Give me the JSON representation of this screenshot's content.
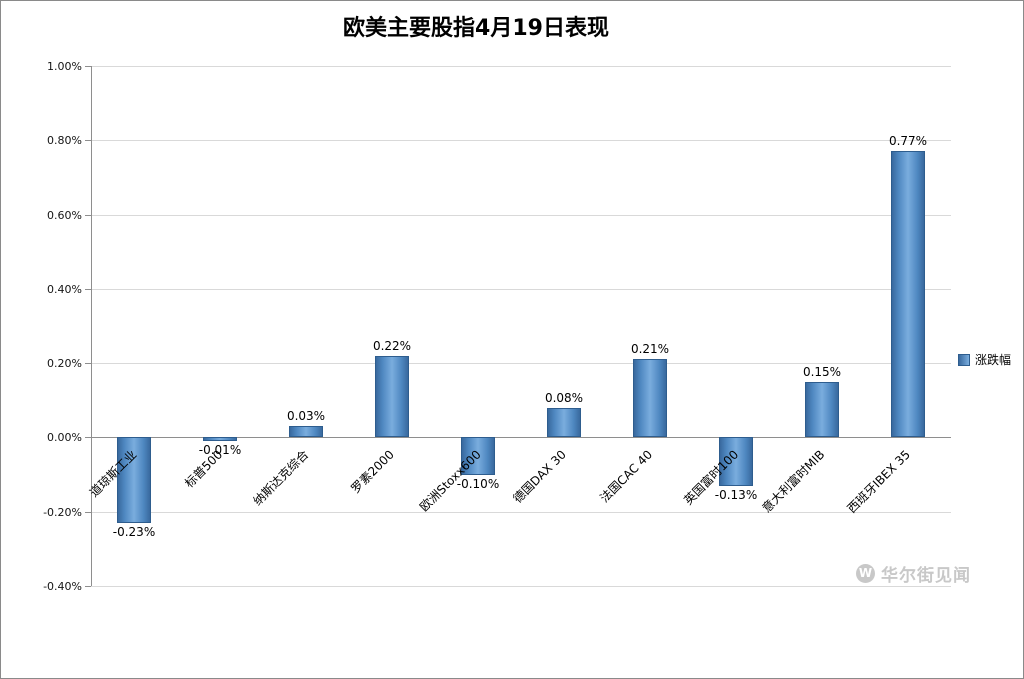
{
  "watermark": {
    "icon_letter": "W",
    "text": "华尔街见闻"
  },
  "chart_data": {
    "type": "bar",
    "title": "欧美主要股指4月19日表现",
    "series_name": "涨跌幅",
    "categories": [
      "道琼斯工业",
      "标普500",
      "纳斯达克综合",
      "罗素2000",
      "欧洲Stoxx600",
      "德国DAX 30",
      "法国CAC 40",
      "英国富时100",
      "意大利富时MIB",
      "西班牙IBEX 35"
    ],
    "values": [
      -0.23,
      -0.01,
      0.03,
      0.22,
      -0.1,
      0.08,
      0.21,
      -0.13,
      0.15,
      0.77
    ],
    "value_labels": [
      "-0.23%",
      "-0.01%",
      "0.03%",
      "0.22%",
      "-0.10%",
      "0.08%",
      "0.21%",
      "-0.13%",
      "0.15%",
      "0.77%"
    ],
    "xlabel": "",
    "ylabel": "",
    "ylim": [
      -0.4,
      1.0
    ],
    "ytick_step": 0.2,
    "ytick_labels": [
      "1.00%",
      "0.80%",
      "0.60%",
      "0.40%",
      "0.20%",
      "0.00%",
      "-0.20%",
      "-0.40%"
    ],
    "grid": true,
    "legend_position": "right",
    "bar_color": "#4f81bd",
    "bar_border_color": "#2e5d8e",
    "gridline_color": "#d9d9d9",
    "axis_color": "#8e8e8e",
    "watermark_color": "#c8c8c8"
  }
}
